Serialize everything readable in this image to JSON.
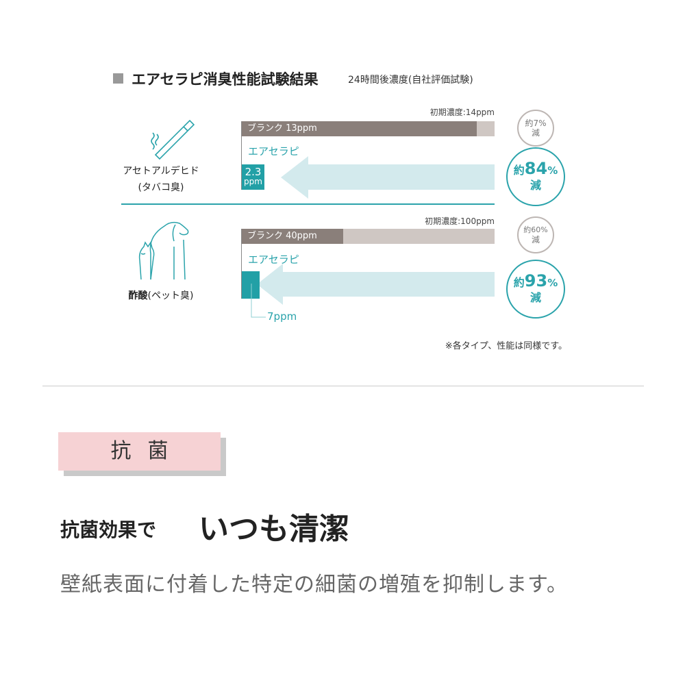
{
  "header": {
    "title": "エアセラピ消臭性能試験結果",
    "subtitle": "24時間後濃度(自社評価試験)"
  },
  "chart_data": {
    "type": "bar",
    "unit": "ppm",
    "groups": [
      {
        "name": "アセトアルデヒド",
        "sub": "(タバコ臭)",
        "icon": "cigarette-icon",
        "initial_label": "初期濃度:14ppm",
        "initial": 14,
        "blank": {
          "label": "ブランク 13ppm",
          "value": 13,
          "reduction_label": [
            "約7%",
            "減"
          ]
        },
        "product": {
          "label": "エアセラピ",
          "value": 2.3,
          "value_text": "2.3",
          "unit_text": "ppm",
          "reduction": {
            "prefix": "約",
            "num": "84",
            "pct": "%",
            "suffix": "減"
          }
        }
      },
      {
        "name": "酢酸",
        "sub": "(ペット臭)",
        "icon": "pet-icon",
        "initial_label": "初期濃度:100ppm",
        "initial": 100,
        "blank": {
          "label": "ブランク 40ppm",
          "value": 40,
          "reduction_label": [
            "約60%",
            "減"
          ]
        },
        "product": {
          "label": "エアセラピ",
          "value": 7,
          "value_text": "7ppm",
          "reduction": {
            "prefix": "約",
            "num": "93",
            "pct": "%",
            "suffix": "減"
          }
        }
      }
    ]
  },
  "colors": {
    "teal": "#22a0a6",
    "blank_dark": "#8a7f7a",
    "blank_light": "#cfc7c3",
    "arrow": "#d3eaed",
    "pink": "#f6d2d4"
  },
  "note": "※各タイプ、性能は同様です。",
  "section": {
    "badge": "抗菌",
    "headline_a": "抗菌効果で",
    "headline_b": "いつも清潔",
    "description": "壁紙表面に付着した特定の細菌の増殖を抑制します。"
  }
}
